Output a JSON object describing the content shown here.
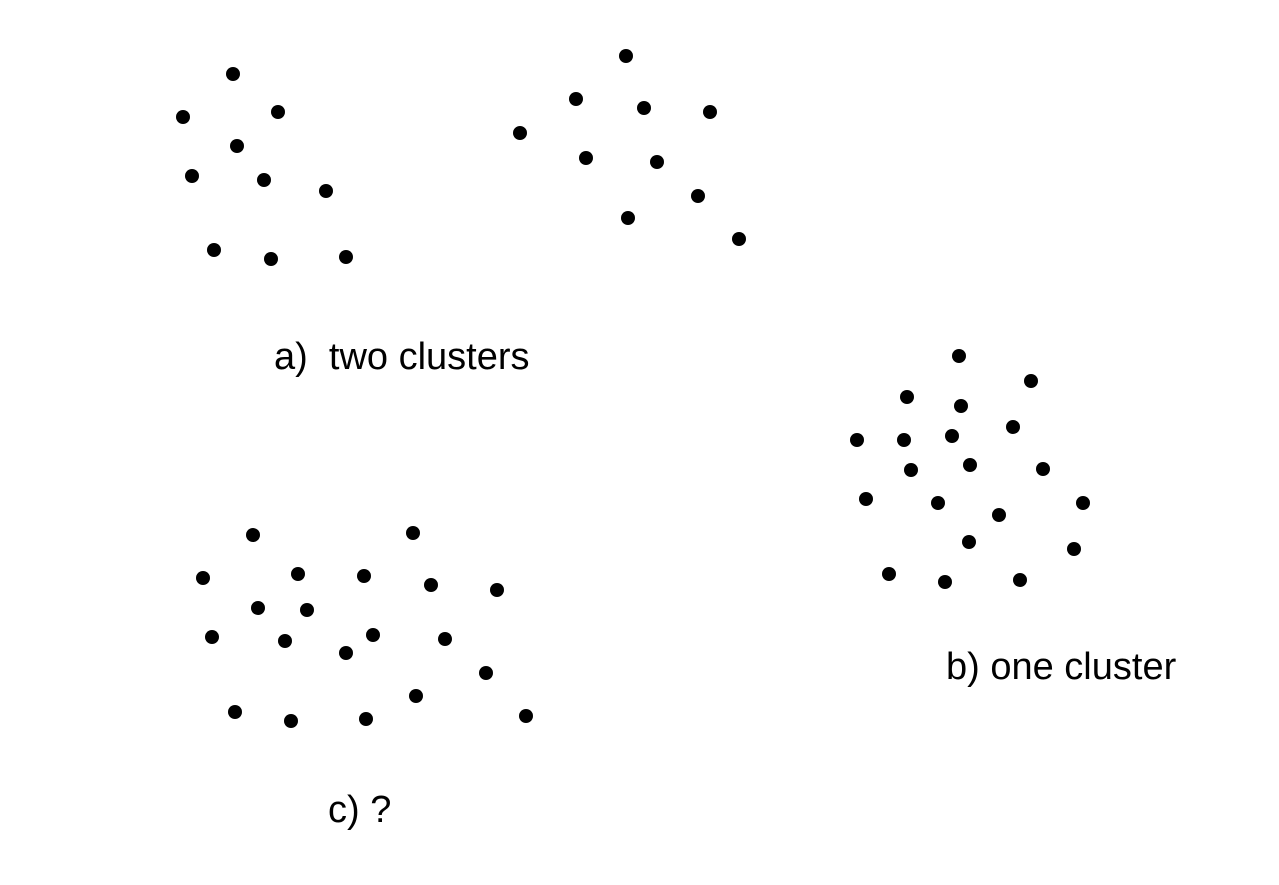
{
  "point_color": "#000000",
  "background_color": "#ffffff",
  "panels": [
    {
      "id": "a",
      "label": "a)  two clusters",
      "points": [
        [
          233,
          74
        ],
        [
          183,
          117
        ],
        [
          278,
          112
        ],
        [
          237,
          146
        ],
        [
          192,
          176
        ],
        [
          264,
          180
        ],
        [
          326,
          191
        ],
        [
          214,
          250
        ],
        [
          271,
          259
        ],
        [
          346,
          257
        ],
        [
          626,
          56
        ],
        [
          576,
          99
        ],
        [
          644,
          108
        ],
        [
          710,
          112
        ],
        [
          520,
          133
        ],
        [
          586,
          158
        ],
        [
          657,
          162
        ],
        [
          698,
          196
        ],
        [
          628,
          218
        ],
        [
          739,
          239
        ]
      ]
    },
    {
      "id": "b",
      "label": "b) one cluster",
      "points": [
        [
          959,
          356
        ],
        [
          1031,
          381
        ],
        [
          907,
          397
        ],
        [
          961,
          406
        ],
        [
          1013,
          427
        ],
        [
          857,
          440
        ],
        [
          904,
          440
        ],
        [
          952,
          436
        ],
        [
          911,
          470
        ],
        [
          970,
          465
        ],
        [
          1043,
          469
        ],
        [
          866,
          499
        ],
        [
          938,
          503
        ],
        [
          1083,
          503
        ],
        [
          999,
          515
        ],
        [
          969,
          542
        ],
        [
          1074,
          549
        ],
        [
          889,
          574
        ],
        [
          945,
          582
        ],
        [
          1020,
          580
        ]
      ]
    },
    {
      "id": "c",
      "label": "c) ?",
      "points": [
        [
          253,
          535
        ],
        [
          413,
          533
        ],
        [
          203,
          578
        ],
        [
          298,
          574
        ],
        [
          364,
          576
        ],
        [
          431,
          585
        ],
        [
          497,
          590
        ],
        [
          258,
          608
        ],
        [
          307,
          610
        ],
        [
          212,
          637
        ],
        [
          285,
          641
        ],
        [
          373,
          635
        ],
        [
          445,
          639
        ],
        [
          346,
          653
        ],
        [
          486,
          673
        ],
        [
          235,
          712
        ],
        [
          291,
          721
        ],
        [
          366,
          719
        ],
        [
          416,
          696
        ],
        [
          526,
          716
        ]
      ]
    }
  ]
}
